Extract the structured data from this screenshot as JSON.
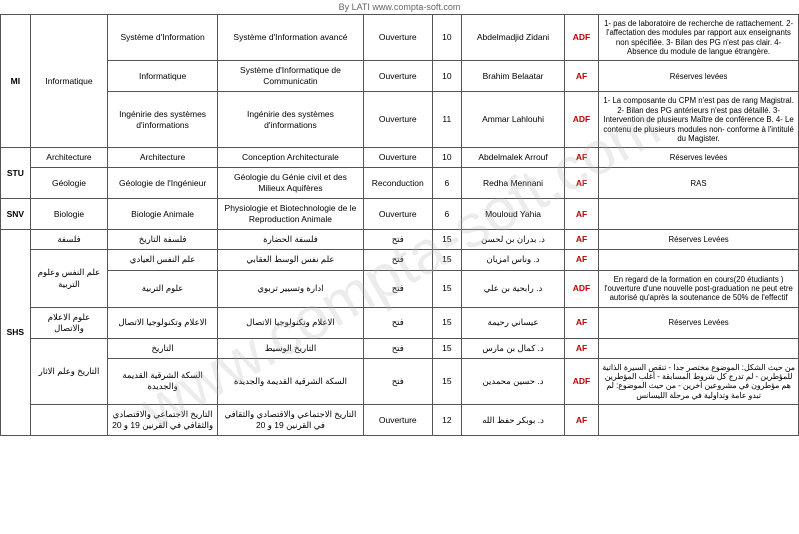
{
  "header": "By LATI    www.compta-soft.com",
  "watermark": "www.compta-soft.com",
  "avis_colors": {
    "ADF": "#c00000",
    "AF": "#c00000"
  },
  "rows": [
    {
      "fac": "MI",
      "fac_rowspan": 3,
      "dom": "Informatique",
      "dom_rowspan": 3,
      "spec": "Système d'Information",
      "opt": "Système d'Information avancé",
      "type": "Ouverture",
      "cap": "10",
      "resp": "Abdelmadjid Zidani",
      "avis": "ADF",
      "obs": "1- pas de laboratoire de recherche de rattachement. 2- l'affectation des modules par rapport aux enseignants non spécifiée. 3- Bilan des PG n'est pas clair. 4- Absence du module de langue étrangère."
    },
    {
      "spec": "Informatique",
      "opt": "Système d'Informatique de Communicatin",
      "type": "Ouverture",
      "cap": "10",
      "resp": "Brahim Belaatar",
      "avis": "AF",
      "obs": "Réserves levées"
    },
    {
      "spec": "Ingénirie des systèmes d'informations",
      "opt": "Ingénirie des systèmes d'informations",
      "type": "Ouverture",
      "cap": "11",
      "resp": "Ammar Lahlouhi",
      "avis": "ADF",
      "obs": "1- La composante du CPM n'est pas de rang Magistral. 2- Bilan des PG antérieurs n'est pas détaillé. 3- Intervention de plusieurs Maître de conférence B. 4- Le contenu de plusieurs modules non- conforme à l'intitulé du Magister."
    },
    {
      "fac": "STU",
      "fac_rowspan": 2,
      "dom": "Architecture",
      "spec": "Architecture",
      "opt": "Conception Architecturale",
      "type": "Ouverture",
      "cap": "10",
      "resp": "Abdelmalek Arrouf",
      "avis": "AF",
      "obs": "Réserves levées"
    },
    {
      "dom": "Géologie",
      "spec": "Géologie de l'Ingénieur",
      "opt": "Géologie du Génie civil et des Milieux Aquifères",
      "type": "Reconduction",
      "cap": "6",
      "resp": "Redha Mennani",
      "avis": "AF",
      "obs": "RAS"
    },
    {
      "fac": "SNV",
      "dom": "Biologie",
      "spec": "Biologie Animale",
      "opt": "Physiologie et Biotechnologie de le Reproduction Animale",
      "type": "Ouverture",
      "cap": "6",
      "resp": "Mouloud Yahia",
      "avis": "AF",
      "obs": ""
    },
    {
      "fac": "SHS",
      "fac_rowspan": 8,
      "dom_ar": "فلسفة",
      "spec_ar": "فلسفة التاريخ",
      "opt_ar": "فلسفة الحضارة",
      "type_ar": "فتح",
      "cap": "15",
      "resp_ar": "د. بدران بن لحسن",
      "avis": "AF",
      "obs": "Réserves Levées"
    },
    {
      "dom_ar": "علم النفس وعلوم التربية",
      "dom_rowspan": 2,
      "spec_ar": "علم النفس العيادي",
      "opt_ar": "علم نفس الوسط العقابي",
      "type_ar": "فتح",
      "cap": "15",
      "resp_ar": "د. وناس امزيان",
      "avis": "AF",
      "obs": ""
    },
    {
      "spec_ar": "علوم التربية",
      "opt_ar": "ادارة وتسيير تربوي",
      "type_ar": "فتح",
      "cap": "15",
      "resp_ar": "د. رابحية بن علي",
      "avis": "ADF",
      "obs": "En regard de la formation en cours(20 étudiants ) l'ouverture d'une nouvelle post-graduation ne peut etre autorisé qu'après la soutenance de 50% de l'effectif"
    },
    {
      "dom_ar": "علوم الاعلام والاتصال",
      "spec_ar": "الاعلام وتكنولوجيا الاتصال",
      "opt_ar": "الاعلام وتكنولوجيا الاتصال",
      "type_ar": "فتح",
      "cap": "15",
      "resp_ar": "عيساني رحيمة",
      "avis": "AF",
      "obs": "Réserves Levées"
    },
    {
      "dom_ar": "التاريخ وعلم الاثار",
      "dom_rowspan": 2,
      "spec_ar": "التاريخ",
      "opt_ar": "التاريخ الوسيط",
      "type_ar": "فتح",
      "cap": "15",
      "resp_ar": "د. كمال بن مارس",
      "avis": "AF",
      "obs": ""
    },
    {
      "spec_ar": "السكة الشرقية القديمة والجديدة",
      "opt_ar": "السكة الشرقية القديمة والجديدة",
      "type_ar": "فتح",
      "cap": "15",
      "resp_ar": "د. حسين محمدين",
      "avis": "ADF",
      "obs_ar": "من حيث الشكل: الموضوع مختصر جدا - تنقص السيرة الذاتية للمؤطرين - لم تدرج كل شروط المسابقة - أغلب المؤطرين هم مؤطرون في مشروعين اخرين - من حيث الموضوع: لم تبدو عامة وتداولية في مرحلة الليسانس"
    },
    {
      "dom_ar": "",
      "spec_ar": "التاريخ الاجتماعي والاقتصادي والثقافي في القرنين 19 و 20",
      "opt_ar": "التاريخ الاجتماعي والاقتصادي والثقافي في القرنين 19 و 20",
      "type": "Ouverture",
      "cap": "12",
      "resp_ar": "د. بوبكر حفظ الله",
      "avis": "AF",
      "obs": ""
    }
  ]
}
